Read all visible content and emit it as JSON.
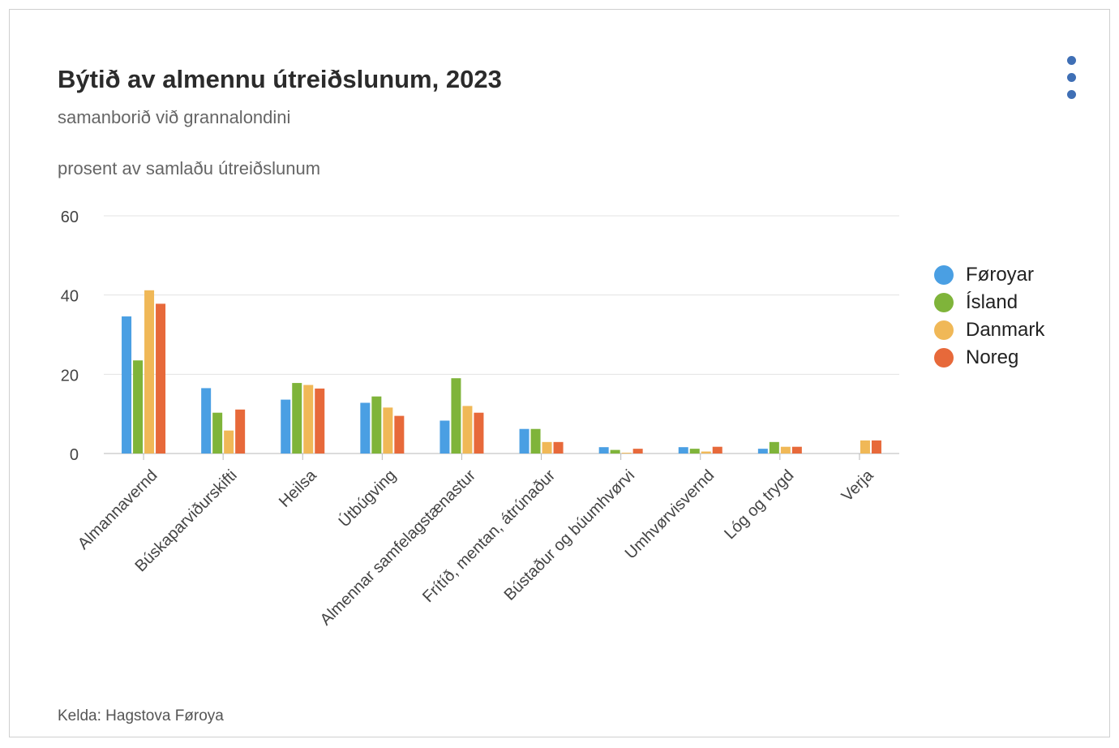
{
  "title": "Býtið av almennu útreiðslunum, 2023",
  "subtitle": "samanborið við grannalondini",
  "unit_label": "prosent av samlaðu útreiðslunum",
  "source": "Kelda: Hagstova Føroya",
  "menu_icon": "kebab-menu-icon",
  "chart_data": {
    "type": "bar",
    "ylim": [
      0,
      60
    ],
    "yticks": [
      0,
      20,
      40,
      60
    ],
    "grid": true,
    "legend_position": "right",
    "categories": [
      "Almannavernd",
      "Búskaparviðurskifti",
      "Heilsa",
      "Útbúgving",
      "Almennar samfelagstænastur",
      "Frítíð, mentan, átrúnaður",
      "Bústaður og búumhvørvi",
      "Umhvørvisvernd",
      "Lóg og trygd",
      "Verja"
    ],
    "series": [
      {
        "name": "Føroyar",
        "color": "#4a9fe3",
        "values": [
          34.6,
          16.5,
          13.6,
          12.8,
          8.3,
          6.2,
          1.6,
          1.6,
          1.2,
          0
        ]
      },
      {
        "name": "Ísland",
        "color": "#7fb43a",
        "values": [
          23.5,
          10.3,
          17.8,
          14.4,
          19.0,
          6.2,
          0.9,
          1.2,
          2.9,
          0
        ]
      },
      {
        "name": "Danmark",
        "color": "#f0b857",
        "values": [
          41.2,
          5.8,
          17.3,
          11.6,
          12.0,
          2.9,
          0.2,
          0.5,
          1.7,
          3.3
        ]
      },
      {
        "name": "Noreg",
        "color": "#e7693a",
        "values": [
          37.8,
          11.1,
          16.4,
          9.5,
          10.3,
          2.9,
          1.2,
          1.7,
          1.7,
          3.3
        ]
      }
    ]
  }
}
